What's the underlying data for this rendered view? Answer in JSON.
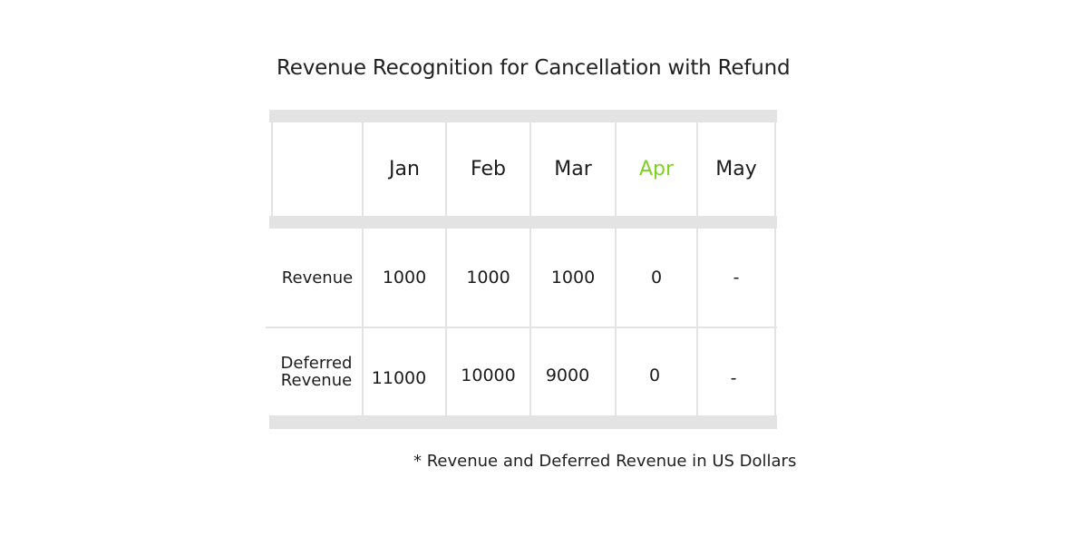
{
  "title": "Revenue Recognition for Cancellation with Refund",
  "table": {
    "columns": [
      {
        "label": "Jan",
        "highlight": false
      },
      {
        "label": "Feb",
        "highlight": false
      },
      {
        "label": "Mar",
        "highlight": false
      },
      {
        "label": "Apr",
        "highlight": true
      },
      {
        "label": "May",
        "highlight": false
      }
    ],
    "highlight_color": "#7ed321",
    "rows": [
      {
        "label_lines": [
          "Revenue"
        ],
        "values": [
          "1000",
          "1000",
          "1000",
          "0",
          "-"
        ]
      },
      {
        "label_lines": [
          "Deferred",
          "Revenue"
        ],
        "values": [
          "11000",
          "10000",
          "9000",
          "0",
          "-"
        ]
      }
    ]
  },
  "footnote": "* Revenue and Deferred Revenue in US Dollars"
}
